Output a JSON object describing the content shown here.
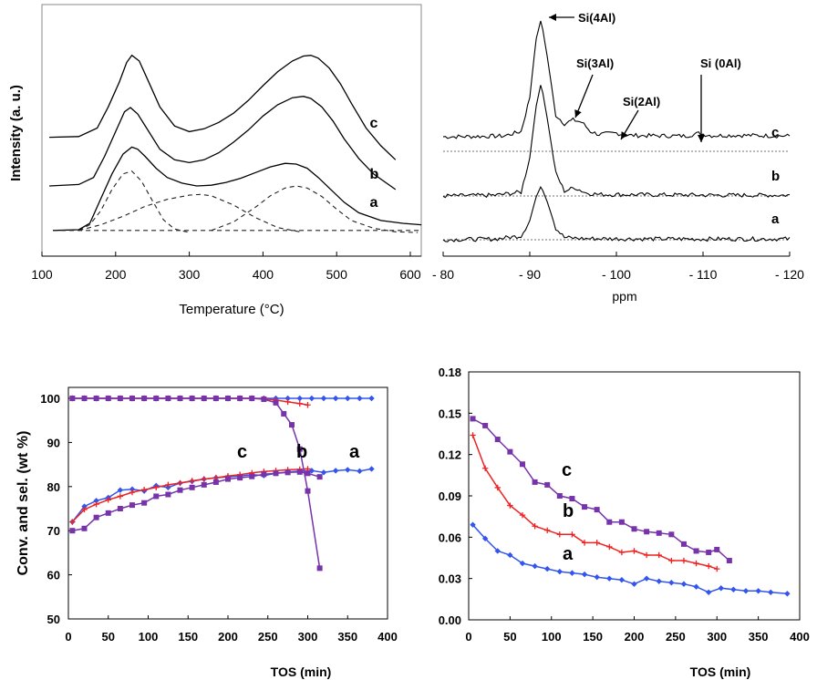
{
  "chart_data": [
    {
      "type": "line",
      "panel": "top-left",
      "xlabel": "Temperature (°C)",
      "ylabel": "Intensity (a. u.)",
      "xlim": [
        100,
        620
      ],
      "x_ticks": [
        "100",
        "200",
        "300",
        "400",
        "500",
        "600"
      ],
      "y_ticks_shown": false,
      "grid": false,
      "series": [
        {
          "name": "c",
          "x": [
            110,
            150,
            175,
            190,
            205,
            215,
            222,
            232,
            245,
            260,
            280,
            300,
            320,
            340,
            360,
            380,
            400,
            420,
            440,
            455,
            465,
            475,
            490,
            505,
            520,
            540,
            560,
            580
          ],
          "y": [
            1.62,
            1.63,
            1.75,
            2.05,
            2.4,
            2.68,
            2.78,
            2.7,
            2.4,
            2.05,
            1.78,
            1.7,
            1.74,
            1.83,
            1.96,
            2.14,
            2.35,
            2.55,
            2.7,
            2.77,
            2.78,
            2.74,
            2.6,
            2.38,
            2.1,
            1.75,
            1.5,
            1.3
          ]
        },
        {
          "name": "b",
          "x": [
            110,
            150,
            170,
            185,
            200,
            212,
            220,
            230,
            245,
            260,
            280,
            300,
            320,
            340,
            360,
            380,
            400,
            420,
            440,
            455,
            465,
            480,
            495,
            510,
            530,
            550,
            580
          ],
          "y": [
            0.93,
            0.95,
            1.05,
            1.35,
            1.7,
            1.98,
            2.04,
            1.95,
            1.7,
            1.45,
            1.3,
            1.26,
            1.3,
            1.4,
            1.55,
            1.72,
            1.92,
            2.08,
            2.18,
            2.2,
            2.17,
            2.05,
            1.85,
            1.6,
            1.32,
            1.1,
            0.88
          ]
        },
        {
          "name": "a",
          "x": [
            115,
            150,
            165,
            180,
            195,
            210,
            222,
            230,
            240,
            255,
            270,
            290,
            310,
            330,
            350,
            370,
            390,
            410,
            430,
            445,
            460,
            475,
            490,
            510,
            530,
            560,
            590,
            615
          ],
          "y": [
            0.3,
            0.31,
            0.4,
            0.75,
            1.1,
            1.38,
            1.48,
            1.45,
            1.35,
            1.18,
            1.05,
            0.97,
            0.93,
            0.94,
            0.98,
            1.04,
            1.12,
            1.2,
            1.25,
            1.24,
            1.18,
            1.05,
            0.9,
            0.7,
            0.55,
            0.44,
            0.4,
            0.38
          ]
        },
        {
          "name": "fit1",
          "style": "dashed",
          "x": [
            150,
            165,
            180,
            195,
            210,
            222,
            235,
            250,
            265,
            280,
            300
          ],
          "y": [
            0.3,
            0.38,
            0.58,
            0.88,
            1.1,
            1.14,
            1.0,
            0.72,
            0.45,
            0.32,
            0.27
          ]
        },
        {
          "name": "fit2",
          "style": "dashed",
          "x": [
            150,
            180,
            210,
            240,
            270,
            300,
            315,
            330,
            360,
            390,
            420,
            450
          ],
          "y": [
            0.3,
            0.38,
            0.5,
            0.64,
            0.74,
            0.8,
            0.81,
            0.79,
            0.66,
            0.48,
            0.34,
            0.28
          ]
        },
        {
          "name": "fit3",
          "style": "dashed",
          "x": [
            330,
            360,
            390,
            410,
            430,
            445,
            460,
            480,
            500,
            520,
            550,
            580,
            610
          ],
          "y": [
            0.3,
            0.42,
            0.63,
            0.79,
            0.9,
            0.93,
            0.9,
            0.78,
            0.6,
            0.44,
            0.33,
            0.28,
            0.27
          ]
        },
        {
          "name": "base",
          "style": "dashed",
          "x": [
            115,
            615
          ],
          "y": [
            0.3,
            0.3
          ]
        }
      ],
      "labels": [
        {
          "text": "c",
          "x": 545,
          "y": 1.82
        },
        {
          "text": "b",
          "x": 545,
          "y": 1.1
        },
        {
          "text": "a",
          "x": 545,
          "y": 0.7
        }
      ]
    },
    {
      "type": "line",
      "panel": "top-right",
      "xlabel": "ppm",
      "xlim": [
        -80,
        -120
      ],
      "x_ticks": [
        "- 80",
        "- 90",
        "- 100",
        "- 110",
        "- 120"
      ],
      "y_ticks_shown": false,
      "grid": false,
      "series": [
        {
          "name": "c",
          "x": [
            -80,
            -84,
            -87,
            -89,
            -90,
            -90.7,
            -91.3,
            -92,
            -93,
            -94,
            -95,
            -96,
            -97,
            -98,
            -100,
            -101,
            -103,
            -108,
            -109.5,
            -111,
            -114,
            -117,
            -120
          ],
          "y": [
            0.38,
            0.39,
            0.4,
            0.52,
            1.4,
            2.9,
            3.45,
            2.5,
            0.95,
            0.72,
            0.82,
            0.76,
            0.52,
            0.44,
            0.48,
            0.42,
            0.41,
            0.4,
            0.47,
            0.41,
            0.42,
            0.41,
            0.4
          ]
        },
        {
          "name": "b",
          "x": [
            -80,
            -86,
            -89,
            -90,
            -90.7,
            -91.3,
            -92,
            -93,
            -94,
            -95.2,
            -96.5,
            -98,
            -105,
            -112,
            -120
          ],
          "y": [
            0.0,
            0.02,
            0.1,
            1.0,
            2.3,
            2.95,
            2.05,
            0.6,
            0.13,
            0.22,
            0.08,
            0.04,
            0.03,
            0.02,
            0.02
          ]
        },
        {
          "name": "a",
          "x": [
            -80,
            -86,
            -89,
            -90,
            -90.7,
            -91.3,
            -92,
            -93,
            -94,
            -96,
            -105,
            -112,
            -120
          ],
          "y": [
            0.0,
            0.02,
            0.1,
            0.5,
            1.1,
            1.4,
            1.0,
            0.3,
            0.06,
            0.03,
            0.02,
            0.02,
            0.02
          ]
        }
      ],
      "labels": [
        {
          "text": "c"
        },
        {
          "text": "b"
        },
        {
          "text": "a"
        }
      ],
      "annotations": [
        "Si(4Al)",
        "Si(3Al)",
        "Si(2Al)",
        "Si (0Al)"
      ]
    },
    {
      "type": "line",
      "panel": "bottom-left",
      "xlabel": "TOS (min)",
      "ylabel": "Conv. and sel. (wt %)",
      "xlim": [
        0,
        400
      ],
      "ylim": [
        50,
        100
      ],
      "x_ticks": [
        "0",
        "50",
        "100",
        "150",
        "200",
        "250",
        "300",
        "350",
        "400"
      ],
      "y_ticks": [
        "50",
        "60",
        "70",
        "80",
        "90",
        "100"
      ],
      "grid": false,
      "series": [
        {
          "name": "a",
          "color": "#3355ee",
          "marker": "diamond",
          "x": [
            5,
            20,
            35,
            50,
            65,
            80,
            95,
            110,
            125,
            140,
            155,
            170,
            185,
            200,
            215,
            230,
            245,
            260,
            275,
            290,
            305,
            320,
            335,
            350,
            365,
            380
          ],
          "y": [
            100,
            100,
            100,
            100,
            100,
            100,
            100,
            100,
            100,
            100,
            100,
            100,
            100,
            100,
            100,
            100,
            100,
            100,
            100,
            100,
            100,
            100,
            100,
            100,
            100,
            100
          ]
        },
        {
          "name": "a",
          "color": "#3355ee",
          "marker": "diamond",
          "x": [
            5,
            20,
            35,
            50,
            65,
            80,
            95,
            110,
            125,
            140,
            155,
            170,
            185,
            200,
            215,
            230,
            245,
            260,
            275,
            290,
            305,
            320,
            335,
            350,
            365,
            380
          ],
          "y": [
            72,
            75.5,
            76.8,
            77.5,
            79.2,
            79.4,
            79.0,
            80.2,
            79.8,
            80.8,
            81.2,
            81.7,
            82.0,
            82.2,
            82.4,
            82.7,
            82.5,
            83.0,
            83.3,
            83.5,
            83.6,
            83.2,
            83.6,
            83.8,
            83.5,
            84.0
          ]
        },
        {
          "name": "b",
          "color": "#ee2222",
          "marker": "plus",
          "x": [
            5,
            20,
            35,
            50,
            65,
            80,
            95,
            110,
            125,
            140,
            155,
            170,
            185,
            200,
            215,
            230,
            245,
            260,
            275,
            290,
            300
          ],
          "y": [
            100,
            100,
            100,
            100,
            100,
            100,
            100,
            100,
            100,
            100,
            100,
            100,
            100,
            100,
            100,
            100,
            99.9,
            99.6,
            99.2,
            98.8,
            98.5
          ]
        },
        {
          "name": "b",
          "color": "#ee2222",
          "marker": "plus",
          "x": [
            5,
            20,
            35,
            50,
            65,
            80,
            95,
            110,
            125,
            140,
            155,
            170,
            185,
            200,
            215,
            230,
            245,
            260,
            275,
            290,
            300
          ],
          "y": [
            72,
            74.8,
            76.0,
            77.0,
            77.8,
            78.7,
            79.3,
            79.8,
            80.4,
            80.8,
            81.3,
            81.7,
            82.0,
            82.4,
            82.7,
            83.1,
            83.4,
            83.6,
            83.8,
            83.9,
            84.0
          ]
        },
        {
          "name": "c",
          "color": "#7733aa",
          "marker": "square",
          "x": [
            5,
            20,
            35,
            50,
            65,
            80,
            95,
            110,
            125,
            140,
            155,
            170,
            185,
            200,
            215,
            230,
            245,
            260,
            270,
            280,
            290,
            300,
            315
          ],
          "y": [
            100,
            100,
            100,
            100,
            100,
            100,
            100,
            100,
            100,
            100,
            100,
            100,
            100,
            100,
            100,
            100,
            99.8,
            99.0,
            96.5,
            94.0,
            88.5,
            79.0,
            61.5
          ]
        },
        {
          "name": "c",
          "color": "#7733aa",
          "marker": "square",
          "x": [
            5,
            20,
            35,
            50,
            65,
            80,
            95,
            110,
            125,
            140,
            155,
            170,
            185,
            200,
            215,
            230,
            245,
            260,
            275,
            290,
            300,
            315
          ],
          "y": [
            70,
            70.5,
            73.0,
            74.0,
            75.0,
            75.8,
            76.3,
            77.8,
            78.2,
            79.2,
            79.8,
            80.4,
            81.0,
            81.7,
            82.0,
            82.3,
            82.8,
            83.0,
            83.2,
            83.3,
            83.0,
            82.2
          ]
        }
      ],
      "labels": [
        {
          "text": "c"
        },
        {
          "text": "b"
        },
        {
          "text": "a"
        }
      ]
    },
    {
      "type": "line",
      "panel": "bottom-right",
      "xlabel": "TOS (min)",
      "xlim": [
        0,
        400
      ],
      "ylim": [
        0,
        0.18
      ],
      "x_ticks": [
        "0",
        "50",
        "100",
        "150",
        "200",
        "250",
        "300",
        "350",
        "400"
      ],
      "y_ticks": [
        "0.00",
        "0.03",
        "0.06",
        "0.09",
        "0.12",
        "0.15",
        "0.18"
      ],
      "grid": false,
      "series": [
        {
          "name": "a",
          "color": "#3355ee",
          "marker": "diamond",
          "x": [
            5,
            20,
            35,
            50,
            65,
            80,
            95,
            110,
            125,
            140,
            155,
            170,
            185,
            200,
            215,
            230,
            245,
            260,
            275,
            290,
            305,
            320,
            335,
            350,
            365,
            385
          ],
          "y": [
            0.069,
            0.059,
            0.05,
            0.047,
            0.041,
            0.039,
            0.037,
            0.035,
            0.034,
            0.033,
            0.031,
            0.03,
            0.029,
            0.026,
            0.03,
            0.028,
            0.027,
            0.026,
            0.024,
            0.02,
            0.023,
            0.022,
            0.021,
            0.021,
            0.02,
            0.019
          ]
        },
        {
          "name": "b",
          "color": "#ee2222",
          "marker": "plus",
          "x": [
            5,
            20,
            35,
            50,
            65,
            80,
            95,
            110,
            125,
            140,
            155,
            170,
            185,
            200,
            215,
            230,
            245,
            260,
            275,
            290,
            300
          ],
          "y": [
            0.134,
            0.11,
            0.096,
            0.083,
            0.076,
            0.068,
            0.065,
            0.062,
            0.062,
            0.056,
            0.056,
            0.053,
            0.049,
            0.05,
            0.047,
            0.047,
            0.043,
            0.043,
            0.041,
            0.039,
            0.037
          ]
        },
        {
          "name": "c",
          "color": "#7733aa",
          "marker": "square",
          "x": [
            5,
            20,
            35,
            50,
            65,
            80,
            95,
            110,
            125,
            140,
            155,
            170,
            185,
            200,
            215,
            230,
            245,
            260,
            275,
            290,
            300,
            315
          ],
          "y": [
            0.146,
            0.141,
            0.131,
            0.122,
            0.113,
            0.1,
            0.098,
            0.09,
            0.088,
            0.082,
            0.08,
            0.071,
            0.071,
            0.066,
            0.064,
            0.063,
            0.062,
            0.055,
            0.05,
            0.049,
            0.051,
            0.043
          ]
        }
      ],
      "labels": [
        {
          "text": "c"
        },
        {
          "text": "b"
        },
        {
          "text": "a"
        }
      ]
    }
  ]
}
